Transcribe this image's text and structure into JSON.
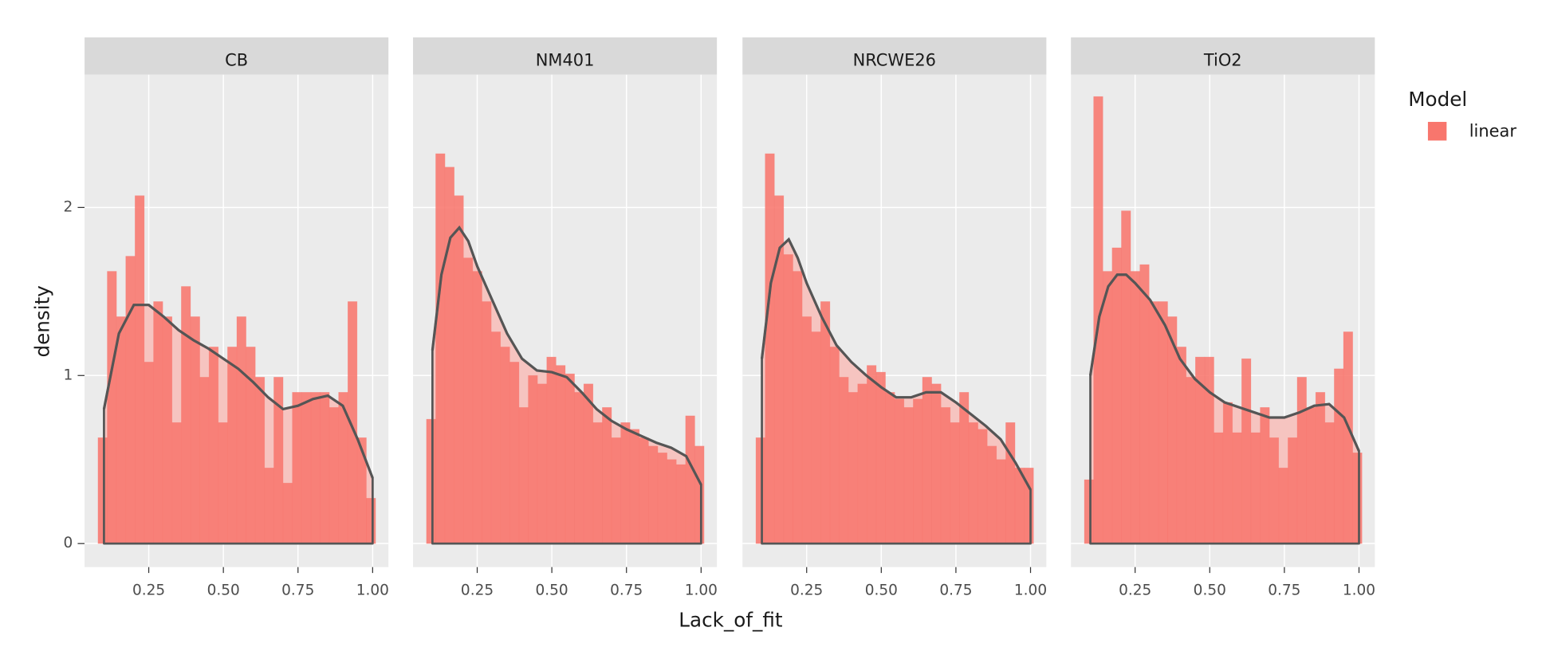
{
  "chart_data": {
    "type": "histogram",
    "x_label": "Lack_of_fit",
    "y_label": "density",
    "legend_title": "Model",
    "series": [
      {
        "name": "linear",
        "color": "#f8766d"
      }
    ],
    "xlim": [
      0.035,
      1.053
    ],
    "xticks": [
      {
        "value": 0.25,
        "label": "0.25"
      },
      {
        "value": 0.5,
        "label": "0.50"
      },
      {
        "value": 0.75,
        "label": "0.75"
      },
      {
        "value": 1.0,
        "label": "1.00"
      }
    ],
    "ylim": [
      -0.14,
      2.79
    ],
    "yticks": [
      0,
      1,
      2
    ],
    "grid": true,
    "bins": [
      0.08,
      0.111,
      0.142,
      0.173,
      0.204,
      0.235,
      0.266,
      0.297,
      0.328,
      0.359,
      0.39,
      0.421,
      0.452,
      0.483,
      0.514,
      0.545,
      0.576,
      0.607,
      0.638,
      0.669,
      0.7,
      0.731,
      0.762,
      0.793,
      0.824,
      0.855,
      0.886,
      0.917,
      0.948,
      0.979,
      1.01
    ],
    "facets": [
      {
        "title": "CB",
        "values": [
          0.63,
          1.62,
          1.35,
          1.71,
          2.07,
          1.08,
          1.44,
          1.35,
          0.72,
          1.53,
          1.35,
          0.99,
          1.17,
          0.72,
          1.17,
          1.35,
          1.17,
          0.99,
          0.45,
          0.99,
          0.36,
          0.9,
          0.9,
          0.9,
          0.9,
          0.81,
          0.9,
          1.44,
          0.63,
          0.27
        ],
        "density": {
          "x": [
            0.1,
            0.15,
            0.2,
            0.25,
            0.3,
            0.35,
            0.4,
            0.45,
            0.5,
            0.55,
            0.6,
            0.65,
            0.7,
            0.75,
            0.8,
            0.85,
            0.9,
            0.95,
            1.0
          ],
          "y": [
            0.8,
            1.25,
            1.42,
            1.42,
            1.35,
            1.27,
            1.21,
            1.16,
            1.1,
            1.04,
            0.96,
            0.87,
            0.8,
            0.82,
            0.86,
            0.88,
            0.82,
            0.62,
            0.39
          ]
        }
      },
      {
        "title": "NM401",
        "values": [
          0.74,
          2.32,
          2.24,
          2.07,
          1.7,
          1.62,
          1.44,
          1.26,
          1.17,
          1.08,
          0.81,
          1.0,
          0.95,
          1.11,
          1.06,
          1.01,
          0.9,
          0.95,
          0.72,
          0.81,
          0.63,
          0.72,
          0.68,
          0.63,
          0.58,
          0.54,
          0.5,
          0.47,
          0.76,
          0.58
        ],
        "density": {
          "x": [
            0.1,
            0.13,
            0.16,
            0.19,
            0.22,
            0.25,
            0.3,
            0.35,
            0.4,
            0.45,
            0.5,
            0.55,
            0.6,
            0.65,
            0.7,
            0.75,
            0.8,
            0.85,
            0.9,
            0.95,
            1.0
          ],
          "y": [
            1.15,
            1.6,
            1.82,
            1.88,
            1.8,
            1.65,
            1.45,
            1.25,
            1.1,
            1.03,
            1.02,
            0.99,
            0.9,
            0.8,
            0.73,
            0.68,
            0.64,
            0.6,
            0.57,
            0.52,
            0.35
          ]
        }
      },
      {
        "title": "NRCWE26",
        "values": [
          0.63,
          2.32,
          2.07,
          1.72,
          1.62,
          1.35,
          1.26,
          1.44,
          1.17,
          0.99,
          0.9,
          0.95,
          1.06,
          1.02,
          0.9,
          0.86,
          0.81,
          0.86,
          0.99,
          0.95,
          0.81,
          0.72,
          0.9,
          0.72,
          0.68,
          0.58,
          0.5,
          0.72,
          0.45,
          0.45
        ],
        "density": {
          "x": [
            0.1,
            0.13,
            0.16,
            0.19,
            0.22,
            0.25,
            0.3,
            0.35,
            0.4,
            0.45,
            0.5,
            0.55,
            0.6,
            0.65,
            0.7,
            0.75,
            0.8,
            0.85,
            0.9,
            0.95,
            1.0
          ],
          "y": [
            1.1,
            1.55,
            1.76,
            1.81,
            1.7,
            1.55,
            1.35,
            1.18,
            1.08,
            1.0,
            0.93,
            0.87,
            0.87,
            0.9,
            0.9,
            0.84,
            0.77,
            0.7,
            0.62,
            0.48,
            0.32
          ]
        }
      },
      {
        "title": "TiO2",
        "values": [
          0.38,
          2.66,
          1.62,
          1.76,
          1.98,
          1.62,
          1.66,
          1.44,
          1.44,
          1.35,
          1.17,
          0.99,
          1.11,
          1.11,
          0.66,
          0.84,
          0.66,
          1.1,
          0.66,
          0.81,
          0.63,
          0.45,
          0.63,
          0.99,
          0.81,
          0.9,
          0.72,
          1.04,
          1.26,
          0.54
        ],
        "density": {
          "x": [
            0.1,
            0.13,
            0.16,
            0.19,
            0.22,
            0.25,
            0.3,
            0.35,
            0.4,
            0.45,
            0.5,
            0.55,
            0.6,
            0.65,
            0.7,
            0.75,
            0.8,
            0.85,
            0.9,
            0.95,
            1.0
          ],
          "y": [
            1.0,
            1.35,
            1.53,
            1.6,
            1.6,
            1.55,
            1.45,
            1.3,
            1.1,
            0.98,
            0.9,
            0.84,
            0.81,
            0.78,
            0.75,
            0.75,
            0.78,
            0.82,
            0.83,
            0.75,
            0.55
          ]
        }
      }
    ]
  }
}
